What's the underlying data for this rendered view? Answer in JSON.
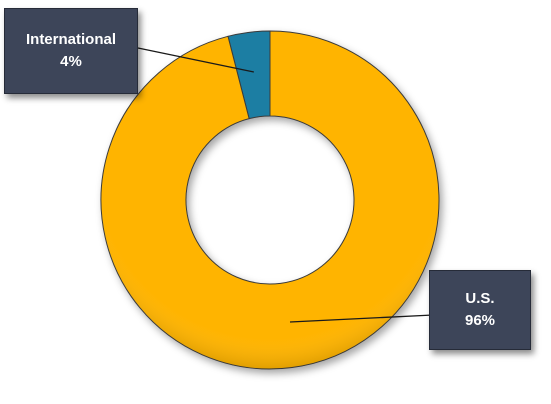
{
  "chart_data": {
    "type": "pie",
    "variant": "donut",
    "title": "",
    "slices": [
      {
        "label": "International",
        "value": 4,
        "display": "4%",
        "color": "#1a7ea3"
      },
      {
        "label": "U.S.",
        "value": 96,
        "display": "96%",
        "color": "#ffb400"
      }
    ],
    "start_angle_deg": 0,
    "direction": "clockwise",
    "legend": "none",
    "data_labels": "callout-boxes"
  }
}
